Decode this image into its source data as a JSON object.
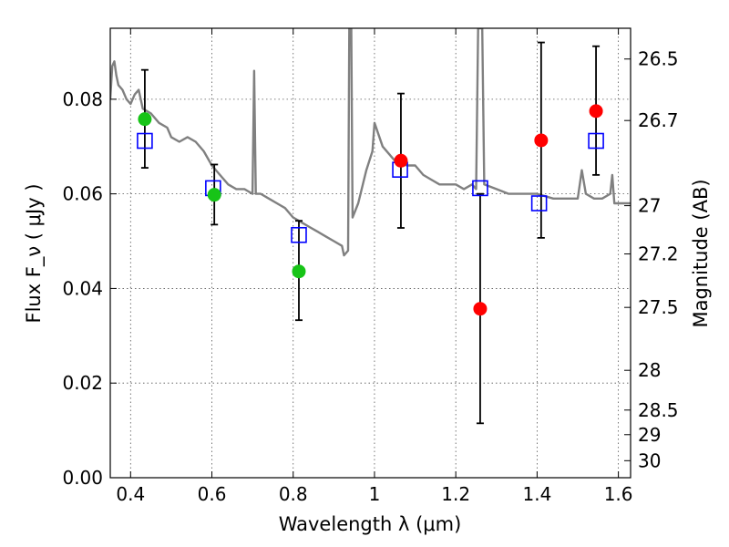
{
  "chart_data": {
    "type": "scatter",
    "xlabel": "Wavelength  λ (μm)",
    "ylabel": "Flux  F_ν  ( μJy )",
    "ylabel_right": "Magnitude (AB)",
    "xlim": [
      0.35,
      1.63
    ],
    "ylim": [
      0.0,
      0.095
    ],
    "grid": true,
    "x_ticks": [
      {
        "value": 0.4,
        "label": "0.4"
      },
      {
        "value": 0.6,
        "label": "0.6"
      },
      {
        "value": 0.8,
        "label": "0.8"
      },
      {
        "value": 1.0,
        "label": "1"
      },
      {
        "value": 1.2,
        "label": "1.2"
      },
      {
        "value": 1.4,
        "label": "1.4"
      },
      {
        "value": 1.6,
        "label": "1.6"
      }
    ],
    "y_ticks": [
      {
        "value": 0.0,
        "label": "0.00"
      },
      {
        "value": 0.02,
        "label": "0.02"
      },
      {
        "value": 0.04,
        "label": "0.04"
      },
      {
        "value": 0.06,
        "label": "0.06"
      },
      {
        "value": 0.08,
        "label": "0.08"
      }
    ],
    "right_ticks": [
      {
        "flux": 0.0885,
        "label": "26.5"
      },
      {
        "flux": 0.0755,
        "label": "26.7"
      },
      {
        "flux": 0.0575,
        "label": "27"
      },
      {
        "flux": 0.0473,
        "label": "27.2"
      },
      {
        "flux": 0.036,
        "label": "27.5"
      },
      {
        "flux": 0.0227,
        "label": "28"
      },
      {
        "flux": 0.0143,
        "label": "28.5"
      },
      {
        "flux": 0.0091,
        "label": "29"
      },
      {
        "flux": 0.0036,
        "label": "30"
      }
    ],
    "spectrum": {
      "color": "#808080",
      "points": [
        [
          0.35,
          0.08
        ],
        [
          0.355,
          0.087
        ],
        [
          0.36,
          0.088
        ],
        [
          0.365,
          0.085
        ],
        [
          0.37,
          0.083
        ],
        [
          0.38,
          0.082
        ],
        [
          0.39,
          0.08
        ],
        [
          0.4,
          0.079
        ],
        [
          0.41,
          0.081
        ],
        [
          0.42,
          0.082
        ],
        [
          0.43,
          0.078
        ],
        [
          0.45,
          0.077
        ],
        [
          0.47,
          0.075
        ],
        [
          0.49,
          0.074
        ],
        [
          0.5,
          0.072
        ],
        [
          0.52,
          0.071
        ],
        [
          0.54,
          0.072
        ],
        [
          0.56,
          0.071
        ],
        [
          0.58,
          0.069
        ],
        [
          0.6,
          0.066
        ],
        [
          0.62,
          0.064
        ],
        [
          0.64,
          0.062
        ],
        [
          0.66,
          0.061
        ],
        [
          0.68,
          0.061
        ],
        [
          0.7,
          0.06
        ],
        [
          0.704,
          0.086
        ],
        [
          0.708,
          0.06
        ],
        [
          0.72,
          0.06
        ],
        [
          0.74,
          0.059
        ],
        [
          0.76,
          0.058
        ],
        [
          0.78,
          0.057
        ],
        [
          0.8,
          0.055
        ],
        [
          0.82,
          0.054
        ],
        [
          0.84,
          0.053
        ],
        [
          0.86,
          0.052
        ],
        [
          0.88,
          0.051
        ],
        [
          0.9,
          0.05
        ],
        [
          0.92,
          0.049
        ],
        [
          0.925,
          0.047
        ],
        [
          0.935,
          0.048
        ],
        [
          0.938,
          0.095
        ],
        [
          0.943,
          0.095
        ],
        [
          0.946,
          0.055
        ],
        [
          0.96,
          0.058
        ],
        [
          0.98,
          0.065
        ],
        [
          0.995,
          0.069
        ],
        [
          1.0,
          0.075
        ],
        [
          1.02,
          0.07
        ],
        [
          1.05,
          0.067
        ],
        [
          1.08,
          0.066
        ],
        [
          1.1,
          0.066
        ],
        [
          1.12,
          0.064
        ],
        [
          1.14,
          0.063
        ],
        [
          1.16,
          0.062
        ],
        [
          1.18,
          0.062
        ],
        [
          1.2,
          0.062
        ],
        [
          1.22,
          0.061
        ],
        [
          1.24,
          0.062
        ],
        [
          1.25,
          0.061
        ],
        [
          1.255,
          0.095
        ],
        [
          1.265,
          0.095
        ],
        [
          1.27,
          0.062
        ],
        [
          1.3,
          0.061
        ],
        [
          1.33,
          0.06
        ],
        [
          1.36,
          0.06
        ],
        [
          1.4,
          0.06
        ],
        [
          1.44,
          0.059
        ],
        [
          1.47,
          0.059
        ],
        [
          1.5,
          0.059
        ],
        [
          1.51,
          0.065
        ],
        [
          1.52,
          0.06
        ],
        [
          1.54,
          0.059
        ],
        [
          1.56,
          0.059
        ],
        [
          1.58,
          0.06
        ],
        [
          1.585,
          0.064
        ],
        [
          1.59,
          0.058
        ],
        [
          1.6,
          0.058
        ],
        [
          1.63,
          0.058
        ]
      ]
    },
    "observed": [
      {
        "x": 0.435,
        "y": 0.0758,
        "err_lo": 0.0655,
        "err_hi": 0.0862,
        "color": "#17c417"
      },
      {
        "x": 0.606,
        "y": 0.0598,
        "err_lo": 0.0535,
        "err_hi": 0.0662,
        "color": "#17c417"
      },
      {
        "x": 0.814,
        "y": 0.0436,
        "err_lo": 0.0333,
        "err_hi": 0.0543,
        "color": "#17c417"
      },
      {
        "x": 1.065,
        "y": 0.067,
        "err_lo": 0.0528,
        "err_hi": 0.0812,
        "color": "#ff0000"
      },
      {
        "x": 1.26,
        "y": 0.0357,
        "err_lo": 0.0115,
        "err_hi": 0.06,
        "color": "#ff0000"
      },
      {
        "x": 1.41,
        "y": 0.0713,
        "err_lo": 0.0507,
        "err_hi": 0.092,
        "color": "#ff0000"
      },
      {
        "x": 1.545,
        "y": 0.0775,
        "err_lo": 0.064,
        "err_hi": 0.0912,
        "color": "#ff0000"
      }
    ],
    "model": [
      {
        "x": 0.435,
        "y": 0.0712
      },
      {
        "x": 0.603,
        "y": 0.0612
      },
      {
        "x": 0.814,
        "y": 0.0513
      },
      {
        "x": 1.063,
        "y": 0.0651
      },
      {
        "x": 1.26,
        "y": 0.0612
      },
      {
        "x": 1.405,
        "y": 0.058
      },
      {
        "x": 1.545,
        "y": 0.0712
      }
    ]
  }
}
